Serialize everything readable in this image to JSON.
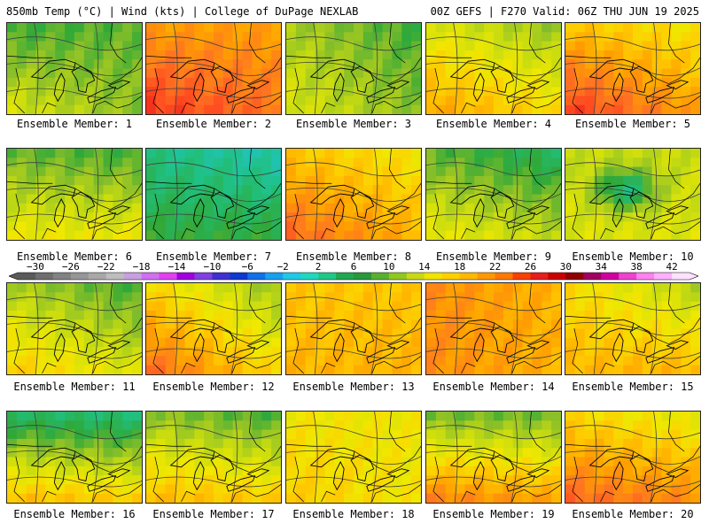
{
  "header": {
    "left": "850mb Temp (°C) | Wind (kts) | College of DuPage NEXLAB",
    "right": "00Z GEFS | F270 Valid: 06Z THU JUN 19 2025"
  },
  "caption_prefix": "Ensemble Member: ",
  "members": [
    {
      "label": "Ensemble Member: 1",
      "temps": [
        9,
        10,
        14,
        11
      ],
      "colder_north": true
    },
    {
      "label": "Ensemble Member: 2",
      "temps": [
        19,
        19,
        24,
        21
      ]
    },
    {
      "label": "Ensemble Member: 3",
      "temps": [
        12,
        9,
        14,
        11
      ]
    },
    {
      "label": "Ensemble Member: 4",
      "temps": [
        14,
        11,
        19,
        16
      ]
    },
    {
      "label": "Ensemble Member: 5",
      "temps": [
        17,
        15,
        24,
        19
      ]
    },
    {
      "label": "Ensemble Member: 6",
      "temps": [
        10,
        9,
        15,
        15
      ]
    },
    {
      "label": "Ensemble Member: 7",
      "temps": [
        6,
        4,
        9,
        9
      ],
      "colder_north": true
    },
    {
      "label": "Ensemble Member: 8",
      "temps": [
        17,
        15,
        22,
        18
      ]
    },
    {
      "label": "Ensemble Member: 9",
      "temps": [
        10,
        7,
        15,
        13
      ]
    },
    {
      "label": "Ensemble Member: 10",
      "temps": [
        13,
        13,
        14,
        14
      ],
      "cold_center": true
    },
    {
      "label": "Ensemble Member: 11",
      "temps": [
        12,
        9,
        17,
        14
      ]
    },
    {
      "label": "Ensemble Member: 12",
      "temps": [
        16,
        11,
        22,
        16
      ]
    },
    {
      "label": "Ensemble Member: 13",
      "temps": [
        17,
        17,
        18,
        18
      ]
    },
    {
      "label": "Ensemble Member: 14",
      "temps": [
        20,
        18,
        20,
        18
      ]
    },
    {
      "label": "Ensemble Member: 15",
      "temps": [
        16,
        12,
        18,
        18
      ]
    },
    {
      "label": "Ensemble Member: 16",
      "temps": [
        7,
        6,
        18,
        17
      ],
      "colder_north": true
    },
    {
      "label": "Ensemble Member: 17",
      "temps": [
        11,
        9,
        18,
        17
      ]
    },
    {
      "label": "Ensemble Member: 18",
      "temps": [
        15,
        15,
        17,
        15
      ]
    },
    {
      "label": "Ensemble Member: 19",
      "temps": [
        10,
        10,
        21,
        19
      ],
      "colder_north": true
    },
    {
      "label": "Ensemble Member: 20",
      "temps": [
        16,
        14,
        22,
        20
      ]
    }
  ],
  "colorbar": {
    "labels": [
      "−30",
      "−26",
      "−22",
      "−18",
      "−14",
      "−10",
      "−6",
      "−2",
      "2",
      "6",
      "10",
      "14",
      "18",
      "22",
      "26",
      "30",
      "34",
      "38",
      "42"
    ],
    "min": -32,
    "max": 44,
    "colors": [
      "#5a5a5a",
      "#6e6e6e",
      "#828282",
      "#969696",
      "#a8a8a8",
      "#bdbdbd",
      "#c8a0e0",
      "#d070f0",
      "#e040f0",
      "#a000e0",
      "#8040e0",
      "#4030d0",
      "#1038d0",
      "#1070e8",
      "#18a0f0",
      "#20c8e8",
      "#20d8c0",
      "#20c888",
      "#20a850",
      "#28983c",
      "#58b030",
      "#90c820",
      "#c8d818",
      "#f0e400",
      "#ffd000",
      "#ffb800",
      "#ff9800",
      "#ff7800",
      "#f84000",
      "#e81c1c",
      "#c80000",
      "#900000",
      "#a00060",
      "#d000a0",
      "#f040d0",
      "#ff80f0",
      "#ffb0ff",
      "#ffe0ff"
    ]
  }
}
